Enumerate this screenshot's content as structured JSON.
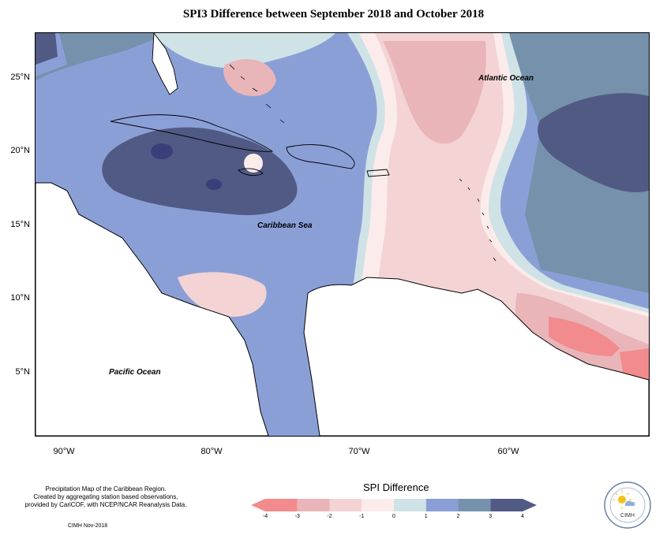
{
  "title": "SPI3 Difference between September 2018 and October 2018",
  "map": {
    "lat_labels": [
      "25°N",
      "20°N",
      "15°N",
      "10°N",
      "5°N"
    ],
    "lon_labels": [
      "90°W",
      "80°W",
      "70°W",
      "60°W"
    ],
    "ocean_labels": {
      "atlantic": "Atlantic Ocean",
      "caribbean": "Caribbean Sea",
      "pacific": "Pacific Ocean"
    }
  },
  "legend": {
    "title": "SPI Difference",
    "ticks": [
      "-4",
      "-3",
      "-2",
      "-1",
      "0",
      "1",
      "2",
      "3",
      "4"
    ],
    "colors": [
      "#f28b8e",
      "#e9b5b8",
      "#f4d3d5",
      "#fbeceb",
      "#cfe3e6",
      "#8b9fd7",
      "#7591ac",
      "#515a84"
    ]
  },
  "footnote": {
    "line1": "Precipitation Map of the Caribbean Region.",
    "line2": "Created by aggregating station based observations,",
    "line3": "provided by CariCOF, with NCEP/NCAR Reanalysis Data.",
    "credit": "CIMH Nov-2018"
  },
  "logo": {
    "text": "CIMH",
    "icon": "sun-cloud-icon"
  }
}
